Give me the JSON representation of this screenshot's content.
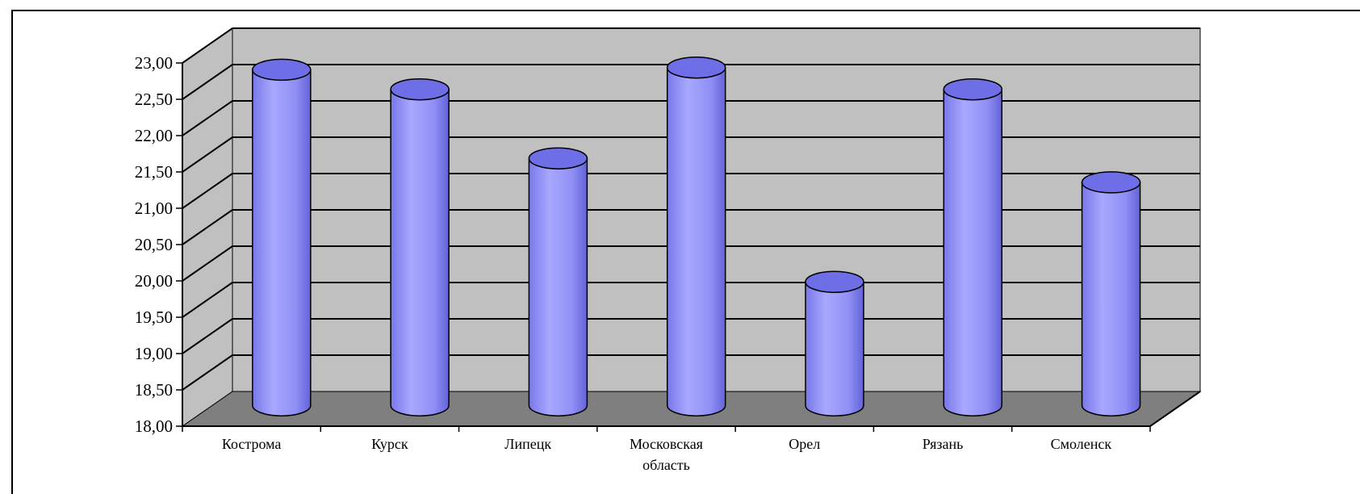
{
  "chart_data": {
    "type": "bar",
    "style": "3d-cylinder",
    "categories": [
      [
        "Кострома"
      ],
      [
        "Курск"
      ],
      [
        "Липецк"
      ],
      [
        "Московская",
        "область"
      ],
      [
        "Орел"
      ],
      [
        "Рязань"
      ],
      [
        "Смоленск"
      ]
    ],
    "values": [
      22.62,
      22.35,
      21.4,
      22.65,
      19.7,
      22.35,
      21.07
    ],
    "yticks": [
      "18,00",
      "18,50",
      "19,00",
      "19,50",
      "20,00",
      "20,50",
      "21,00",
      "21,50",
      "22,00",
      "22,50",
      "23,00"
    ],
    "ylim": [
      18,
      23
    ],
    "grid": true,
    "legend": "none",
    "colors": {
      "bar_front": "#9a9aff",
      "bar_side": "#6f6fe0",
      "bar_top": "#6e6ee6",
      "wall": "#c0c0c0",
      "floor": "#7f7f7f",
      "grid": "#000000"
    }
  }
}
